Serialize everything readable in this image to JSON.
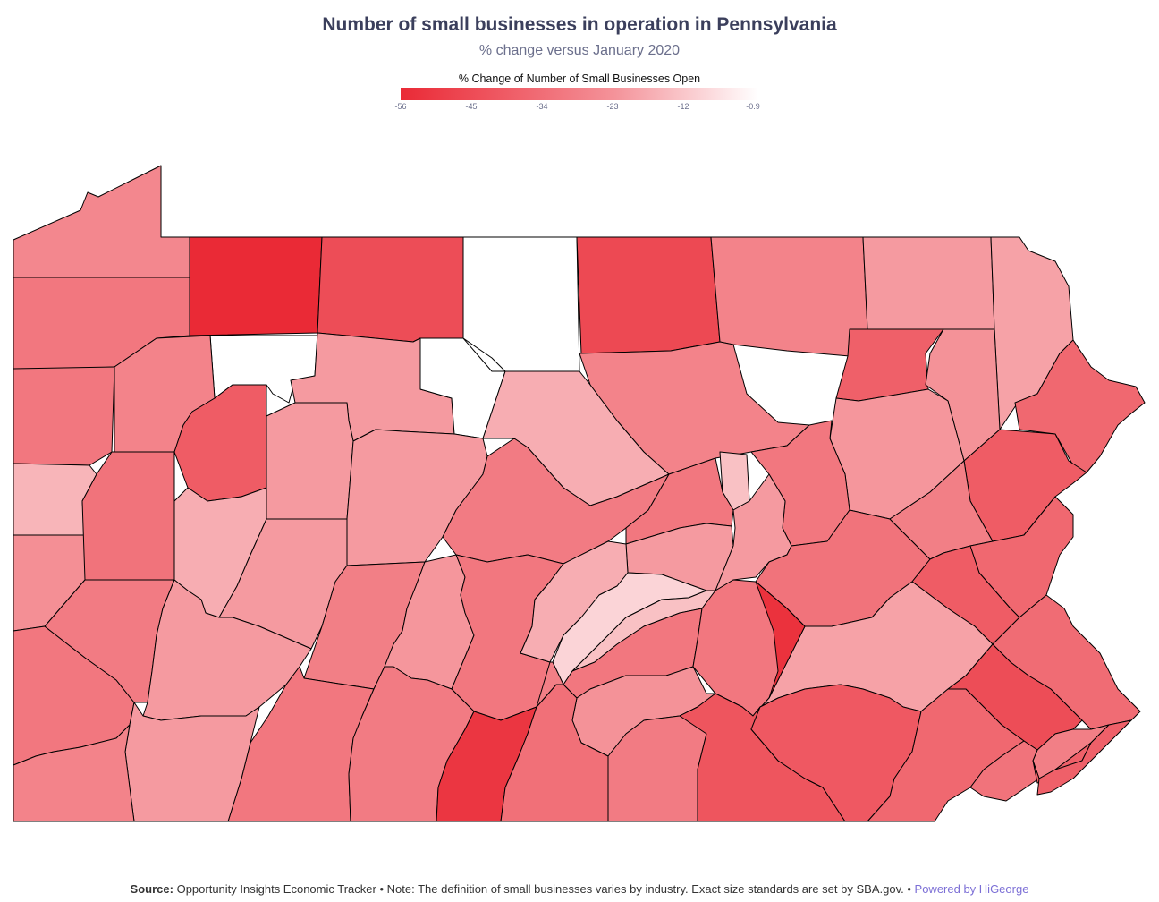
{
  "title": "Number of small businesses in operation in Pennsylvania",
  "subtitle": "% change versus January 2020",
  "legend": {
    "title": "% Change of Number of Small Businesses Open",
    "ticks": [
      "-56",
      "-45",
      "-34",
      "-23",
      "-12",
      "-0.9"
    ],
    "colors": {
      "low": "#ea2a36",
      "high": "#ffffff"
    }
  },
  "footer": {
    "source_label": "Source:",
    "source_text": "Opportunity Insights Economic Tracker",
    "sep1": "•",
    "note": "Note: The definition of small businesses varies by industry. Exact size standards are set by SBA.gov.",
    "sep2": "•",
    "powered": "Powered by HiGeorge"
  },
  "map_data": {
    "state": "Pennsylvania",
    "value_range": [
      -56,
      -0.9
    ],
    "regions": [
      {
        "id": "c01",
        "value": -32
      },
      {
        "id": "c02",
        "value": -56
      },
      {
        "id": "c03",
        "value": -47
      },
      {
        "id": "c04",
        "value": null
      },
      {
        "id": "c05",
        "value": -48
      },
      {
        "id": "c06",
        "value": -33
      },
      {
        "id": "c07",
        "value": -27
      },
      {
        "id": "c08",
        "value": -25
      },
      {
        "id": "c09",
        "value": -40
      },
      {
        "id": "c10",
        "value": -36
      },
      {
        "id": "c11",
        "value": -36
      },
      {
        "id": "c12",
        "value": null
      },
      {
        "id": "c13",
        "value": -27
      },
      {
        "id": "c14",
        "value": null
      },
      {
        "id": "c15",
        "value": -22
      },
      {
        "id": "c16",
        "value": -33
      },
      {
        "id": "c17",
        "value": -42
      },
      {
        "id": "c18",
        "value": -29
      },
      {
        "id": "c19",
        "value": -33
      },
      {
        "id": "c20",
        "value": -20
      },
      {
        "id": "c21",
        "value": -43
      },
      {
        "id": "c22",
        "value": -27
      },
      {
        "id": "c23",
        "value": -27
      },
      {
        "id": "c24",
        "value": -35
      },
      {
        "id": "c25",
        "value": -28
      },
      {
        "id": "c26",
        "value": -43
      },
      {
        "id": "c27",
        "value": -17
      },
      {
        "id": "c28",
        "value": -36
      },
      {
        "id": "c29",
        "value": -36
      },
      {
        "id": "c30",
        "value": -30
      },
      {
        "id": "c31",
        "value": -37
      },
      {
        "id": "c32",
        "value": -22
      },
      {
        "id": "c33",
        "value": -27
      },
      {
        "id": "c34",
        "value": -34
      },
      {
        "id": "c35",
        "value": -28
      },
      {
        "id": "c36",
        "value": -36
      },
      {
        "id": "c37",
        "value": -27
      },
      {
        "id": "c38",
        "value": -27
      },
      {
        "id": "c39",
        "value": -37
      },
      {
        "id": "c40",
        "value": -34
      },
      {
        "id": "c41",
        "value": -22
      },
      {
        "id": "c42",
        "value": -12
      },
      {
        "id": "c43",
        "value": -17
      },
      {
        "id": "c44",
        "value": -36
      },
      {
        "id": "c45",
        "value": -35
      },
      {
        "id": "c46",
        "value": -43
      },
      {
        "id": "c47",
        "value": -40
      },
      {
        "id": "c48",
        "value": -27
      },
      {
        "id": "c49",
        "value": -36
      },
      {
        "id": "c50",
        "value": -35
      },
      {
        "id": "c51",
        "value": -36
      },
      {
        "id": "c52",
        "value": -36
      },
      {
        "id": "c53",
        "value": -27
      },
      {
        "id": "c54",
        "value": -33
      },
      {
        "id": "c55",
        "value": -29
      },
      {
        "id": "c56",
        "value": -25
      },
      {
        "id": "c57",
        "value": -39
      },
      {
        "id": "c58",
        "value": -47
      },
      {
        "id": "c59",
        "value": -34
      },
      {
        "id": "c60",
        "value": -53
      },
      {
        "id": "c61",
        "value": -38
      },
      {
        "id": "c62",
        "value": -35
      },
      {
        "id": "c63",
        "value": -45
      },
      {
        "id": "c64",
        "value": -44
      },
      {
        "id": "c65",
        "value": -40
      },
      {
        "id": "c66",
        "value": -37
      },
      {
        "id": "c67",
        "value": -42
      },
      {
        "id": "c68",
        "value": -54
      },
      {
        "id": "c69",
        "value": -42
      },
      {
        "id": "c70",
        "value": -34
      }
    ]
  }
}
